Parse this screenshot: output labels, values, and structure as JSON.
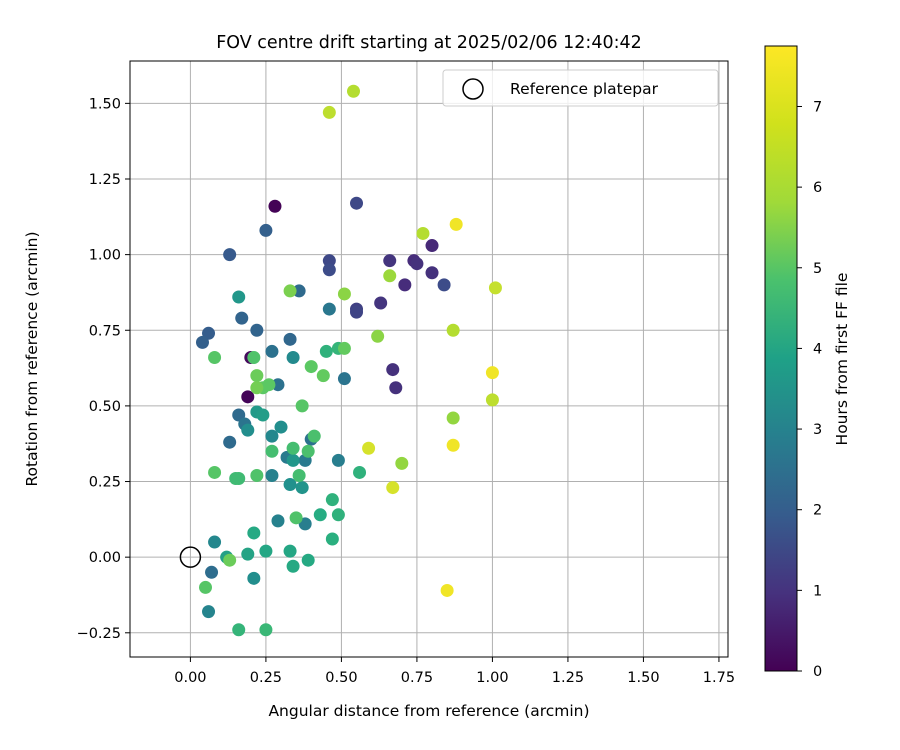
{
  "chart_data": {
    "type": "scatter",
    "title": "FOV centre drift starting at 2025/02/06 12:40:42",
    "xlabel": "Angular distance from reference (arcmin)",
    "ylabel": "Rotation from reference (arcmin)",
    "xlim": [
      -0.2,
      1.78
    ],
    "ylim": [
      -0.33,
      1.64
    ],
    "xticks": [
      0,
      0.25,
      0.5,
      0.75,
      1.0,
      1.25,
      1.5,
      1.75
    ],
    "xtick_labels": [
      "0.00",
      "0.25",
      "0.50",
      "0.75",
      "1.00",
      "1.25",
      "1.50",
      "1.75"
    ],
    "yticks": [
      -0.25,
      0,
      0.25,
      0.5,
      0.75,
      1.0,
      1.25,
      1.5
    ],
    "ytick_labels": [
      "−0.25",
      "0.00",
      "0.25",
      "0.50",
      "0.75",
      "1.00",
      "1.25",
      "1.50"
    ],
    "grid": true,
    "legend": {
      "position": "top-right",
      "entries": [
        "Reference platepar"
      ]
    },
    "reference_point": {
      "x": 0.0,
      "y": 0.0,
      "label": "Reference platepar"
    },
    "colorbar": {
      "label": "Hours from first FF file",
      "colormap": "viridis",
      "min": 0,
      "max": 7.75,
      "ticks": [
        0,
        1,
        2,
        3,
        4,
        5,
        6,
        7
      ],
      "tick_labels": [
        "0",
        "1",
        "2",
        "3",
        "4",
        "5",
        "6",
        "7"
      ]
    },
    "series": [
      {
        "color_by": "hours",
        "points": [
          {
            "x": 0.28,
            "y": 1.16,
            "hours": 0.05
          },
          {
            "x": 0.19,
            "y": 0.53,
            "hours": 0.1
          },
          {
            "x": 0.2,
            "y": 0.66,
            "hours": 0.2
          },
          {
            "x": 0.8,
            "y": 1.03,
            "hours": 0.9
          },
          {
            "x": 0.74,
            "y": 0.98,
            "hours": 1.0
          },
          {
            "x": 0.75,
            "y": 0.97,
            "hours": 1.1
          },
          {
            "x": 0.8,
            "y": 0.94,
            "hours": 1.1
          },
          {
            "x": 0.71,
            "y": 0.9,
            "hours": 1.0
          },
          {
            "x": 0.66,
            "y": 0.98,
            "hours": 1.2
          },
          {
            "x": 0.63,
            "y": 0.84,
            "hours": 1.2
          },
          {
            "x": 0.67,
            "y": 0.62,
            "hours": 1.1
          },
          {
            "x": 0.68,
            "y": 0.56,
            "hours": 1.1
          },
          {
            "x": 0.55,
            "y": 0.82,
            "hours": 1.5
          },
          {
            "x": 0.55,
            "y": 0.81,
            "hours": 1.6
          },
          {
            "x": 0.55,
            "y": 1.17,
            "hours": 1.7
          },
          {
            "x": 0.46,
            "y": 0.98,
            "hours": 1.7
          },
          {
            "x": 0.46,
            "y": 0.95,
            "hours": 1.8
          },
          {
            "x": 0.84,
            "y": 0.9,
            "hours": 1.8
          },
          {
            "x": 0.13,
            "y": 1.0,
            "hours": 2.2
          },
          {
            "x": 0.25,
            "y": 1.08,
            "hours": 2.4
          },
          {
            "x": 0.06,
            "y": 0.74,
            "hours": 2.3
          },
          {
            "x": 0.04,
            "y": 0.71,
            "hours": 2.4
          },
          {
            "x": 0.17,
            "y": 0.79,
            "hours": 2.5
          },
          {
            "x": 0.22,
            "y": 0.75,
            "hours": 2.5
          },
          {
            "x": 0.33,
            "y": 0.72,
            "hours": 2.6
          },
          {
            "x": 0.36,
            "y": 0.88,
            "hours": 2.7
          },
          {
            "x": 0.16,
            "y": 0.47,
            "hours": 2.7
          },
          {
            "x": 0.13,
            "y": 0.38,
            "hours": 2.7
          },
          {
            "x": 0.07,
            "y": -0.05,
            "hours": 2.8
          },
          {
            "x": 0.27,
            "y": 0.68,
            "hours": 2.9
          },
          {
            "x": 0.29,
            "y": 0.57,
            "hours": 2.9
          },
          {
            "x": 0.4,
            "y": 0.39,
            "hours": 2.9
          },
          {
            "x": 0.51,
            "y": 0.59,
            "hours": 3.0
          },
          {
            "x": 0.46,
            "y": 0.82,
            "hours": 3.1
          },
          {
            "x": 0.18,
            "y": 0.44,
            "hours": 3.0
          },
          {
            "x": 0.32,
            "y": 0.33,
            "hours": 3.2
          },
          {
            "x": 0.38,
            "y": 0.32,
            "hours": 3.2
          },
          {
            "x": 0.49,
            "y": 0.32,
            "hours": 3.3
          },
          {
            "x": 0.38,
            "y": 0.11,
            "hours": 3.3
          },
          {
            "x": 0.29,
            "y": 0.12,
            "hours": 3.4
          },
          {
            "x": 0.27,
            "y": 0.27,
            "hours": 3.4
          },
          {
            "x": 0.06,
            "y": -0.18,
            "hours": 3.5
          },
          {
            "x": 0.08,
            "y": 0.05,
            "hours": 3.6
          },
          {
            "x": 0.27,
            "y": 0.4,
            "hours": 3.6
          },
          {
            "x": 0.34,
            "y": 0.66,
            "hours": 3.7
          },
          {
            "x": 0.21,
            "y": -0.07,
            "hours": 3.8
          },
          {
            "x": 0.19,
            "y": 0.42,
            "hours": 3.8
          },
          {
            "x": 0.3,
            "y": 0.43,
            "hours": 3.8
          },
          {
            "x": 0.33,
            "y": 0.24,
            "hours": 3.9
          },
          {
            "x": 0.37,
            "y": 0.23,
            "hours": 4.0
          },
          {
            "x": 0.16,
            "y": 0.86,
            "hours": 4.1
          },
          {
            "x": 0.34,
            "y": 0.32,
            "hours": 4.1
          },
          {
            "x": 0.22,
            "y": 0.48,
            "hours": 4.2
          },
          {
            "x": 0.24,
            "y": 0.47,
            "hours": 4.3
          },
          {
            "x": 0.12,
            "y": 0.0,
            "hours": 4.4
          },
          {
            "x": 0.19,
            "y": 0.01,
            "hours": 4.5
          },
          {
            "x": 0.25,
            "y": 0.02,
            "hours": 4.6
          },
          {
            "x": 0.33,
            "y": 0.02,
            "hours": 4.6
          },
          {
            "x": 0.34,
            "y": -0.03,
            "hours": 4.7
          },
          {
            "x": 0.21,
            "y": 0.08,
            "hours": 4.7
          },
          {
            "x": 0.39,
            "y": -0.01,
            "hours": 4.7
          },
          {
            "x": 0.43,
            "y": 0.14,
            "hours": 4.8
          },
          {
            "x": 0.47,
            "y": 0.06,
            "hours": 4.9
          },
          {
            "x": 0.49,
            "y": 0.14,
            "hours": 5.0
          },
          {
            "x": 0.47,
            "y": 0.19,
            "hours": 5.0
          },
          {
            "x": 0.56,
            "y": 0.28,
            "hours": 5.0
          },
          {
            "x": 0.45,
            "y": 0.68,
            "hours": 5.0
          },
          {
            "x": 0.49,
            "y": 0.69,
            "hours": 5.1
          },
          {
            "x": 0.16,
            "y": -0.24,
            "hours": 5.1
          },
          {
            "x": 0.25,
            "y": -0.24,
            "hours": 5.2
          },
          {
            "x": 0.15,
            "y": 0.26,
            "hours": 5.3
          },
          {
            "x": 0.16,
            "y": 0.26,
            "hours": 5.3
          },
          {
            "x": 0.27,
            "y": 0.35,
            "hours": 5.4
          },
          {
            "x": 0.34,
            "y": 0.36,
            "hours": 5.4
          },
          {
            "x": 0.36,
            "y": 0.27,
            "hours": 5.4
          },
          {
            "x": 0.39,
            "y": 0.35,
            "hours": 5.5
          },
          {
            "x": 0.41,
            "y": 0.4,
            "hours": 5.5
          },
          {
            "x": 0.35,
            "y": 0.13,
            "hours": 5.6
          },
          {
            "x": 0.22,
            "y": 0.27,
            "hours": 5.6
          },
          {
            "x": 0.05,
            "y": -0.1,
            "hours": 5.7
          },
          {
            "x": 0.08,
            "y": 0.28,
            "hours": 5.7
          },
          {
            "x": 0.08,
            "y": 0.66,
            "hours": 5.7
          },
          {
            "x": 0.21,
            "y": 0.66,
            "hours": 5.6
          },
          {
            "x": 0.24,
            "y": 0.56,
            "hours": 5.8
          },
          {
            "x": 0.26,
            "y": 0.57,
            "hours": 5.8
          },
          {
            "x": 0.37,
            "y": 0.5,
            "hours": 5.7
          },
          {
            "x": 0.4,
            "y": 0.63,
            "hours": 5.8
          },
          {
            "x": 0.44,
            "y": 0.6,
            "hours": 5.9
          },
          {
            "x": 0.51,
            "y": 0.69,
            "hours": 5.9
          },
          {
            "x": 0.22,
            "y": 0.6,
            "hours": 6.0
          },
          {
            "x": 0.22,
            "y": 0.56,
            "hours": 6.1
          },
          {
            "x": 0.13,
            "y": -0.01,
            "hours": 6.0
          },
          {
            "x": 0.33,
            "y": 0.88,
            "hours": 6.2
          },
          {
            "x": 0.51,
            "y": 0.87,
            "hours": 6.4
          },
          {
            "x": 0.62,
            "y": 0.73,
            "hours": 6.4
          },
          {
            "x": 0.66,
            "y": 0.93,
            "hours": 6.6
          },
          {
            "x": 0.7,
            "y": 0.31,
            "hours": 6.5
          },
          {
            "x": 0.87,
            "y": 0.46,
            "hours": 6.5
          },
          {
            "x": 0.77,
            "y": 1.07,
            "hours": 6.9
          },
          {
            "x": 0.87,
            "y": 0.75,
            "hours": 6.9
          },
          {
            "x": 0.54,
            "y": 1.54,
            "hours": 6.9
          },
          {
            "x": 0.46,
            "y": 1.47,
            "hours": 7.0
          },
          {
            "x": 1.0,
            "y": 0.52,
            "hours": 7.0
          },
          {
            "x": 1.01,
            "y": 0.89,
            "hours": 7.1
          },
          {
            "x": 0.59,
            "y": 0.36,
            "hours": 7.3
          },
          {
            "x": 0.67,
            "y": 0.23,
            "hours": 7.3
          },
          {
            "x": 0.88,
            "y": 1.1,
            "hours": 7.6
          },
          {
            "x": 1.0,
            "y": 0.61,
            "hours": 7.6
          },
          {
            "x": 0.87,
            "y": 0.37,
            "hours": 7.6
          },
          {
            "x": 0.85,
            "y": -0.11,
            "hours": 7.6
          }
        ]
      }
    ]
  }
}
